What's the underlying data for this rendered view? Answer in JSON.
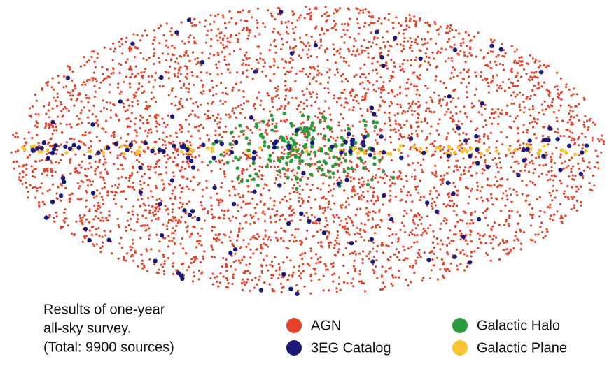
{
  "caption": [
    "Results of one-year",
    "all-sky survey.",
    "(Total: 9900 sources)"
  ],
  "legend": [
    {
      "label": "AGN",
      "color": "#e5432b"
    },
    {
      "label": "3EG Catalog",
      "color": "#1c1a78"
    },
    {
      "label": "Galactic Halo",
      "color": "#2b9a3c"
    },
    {
      "label": "Galactic Plane",
      "color": "#f6c531"
    }
  ]
}
